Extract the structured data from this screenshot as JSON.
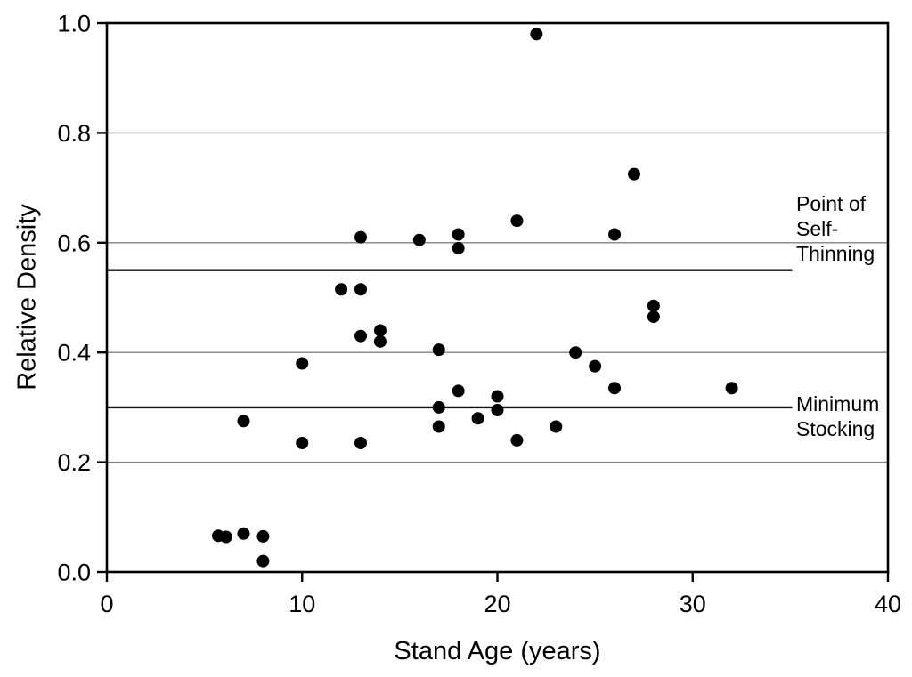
{
  "chart_data": {
    "type": "scatter",
    "title": "",
    "xlabel": "Stand Age (years)",
    "ylabel": "Relative Density",
    "xlim": [
      0,
      40
    ],
    "ylim": [
      0.0,
      1.0
    ],
    "grid_on": true,
    "gridlines_y": [
      0.2,
      0.4,
      0.6,
      0.8
    ],
    "grid_color": "#828282",
    "axis_color": "#000000",
    "point_color": "#000000",
    "x_ticks": [
      {
        "value": 0,
        "label": "0"
      },
      {
        "value": 10,
        "label": "10"
      },
      {
        "value": 20,
        "label": "20"
      },
      {
        "value": 30,
        "label": "30"
      },
      {
        "value": 40,
        "label": "40"
      }
    ],
    "y_ticks": [
      {
        "value": 0.0,
        "label": "0.0"
      },
      {
        "value": 0.2,
        "label": "0.2"
      },
      {
        "value": 0.4,
        "label": "0.4"
      },
      {
        "value": 0.6,
        "label": "0.6"
      },
      {
        "value": 0.8,
        "label": "0.8"
      },
      {
        "value": 1.0,
        "label": "1.0"
      }
    ],
    "reference_lines": [
      {
        "y": 0.55,
        "x_start": 0,
        "x_end": 35.1,
        "color": "#111111",
        "label": "Point of Self-Thinning",
        "label_lines": [
          "Point of",
          "Self-",
          "Thinning"
        ]
      },
      {
        "y": 0.3,
        "x_start": 0,
        "x_end": 35.1,
        "color": "#111111",
        "label": "Minimum Stocking",
        "label_lines": [
          "Minimum",
          "Stocking"
        ]
      }
    ],
    "points": [
      [
        5.7,
        0.066
      ],
      [
        6.1,
        0.064
      ],
      [
        7,
        0.07
      ],
      [
        8,
        0.065
      ],
      [
        8,
        0.02
      ],
      [
        7,
        0.275
      ],
      [
        10,
        0.38
      ],
      [
        10,
        0.235
      ],
      [
        12,
        0.515
      ],
      [
        13,
        0.515
      ],
      [
        13,
        0.61
      ],
      [
        13,
        0.43
      ],
      [
        13,
        0.235
      ],
      [
        14,
        0.44
      ],
      [
        14,
        0.42
      ],
      [
        16,
        0.605
      ],
      [
        17,
        0.405
      ],
      [
        17,
        0.3
      ],
      [
        17,
        0.265
      ],
      [
        18,
        0.615
      ],
      [
        18,
        0.59
      ],
      [
        18,
        0.33
      ],
      [
        19,
        0.28
      ],
      [
        20,
        0.32
      ],
      [
        20,
        0.295
      ],
      [
        21,
        0.64
      ],
      [
        21,
        0.24
      ],
      [
        22,
        0.98
      ],
      [
        23,
        0.265
      ],
      [
        24,
        0.4
      ],
      [
        25,
        0.375
      ],
      [
        26,
        0.615
      ],
      [
        26,
        0.335
      ],
      [
        27,
        0.725
      ],
      [
        28,
        0.485
      ],
      [
        28,
        0.465
      ],
      [
        32,
        0.335
      ]
    ]
  }
}
